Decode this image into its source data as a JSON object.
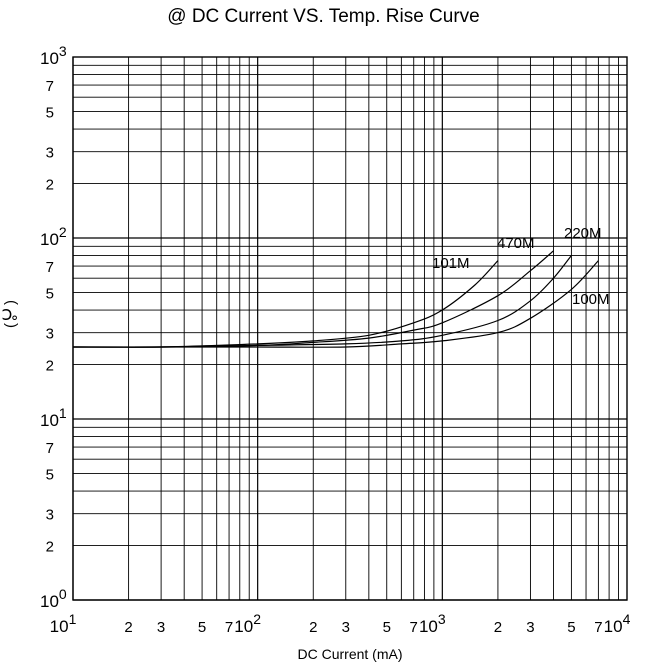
{
  "chart_data": {
    "type": "line",
    "title": "@ DC Current VS. Temp. Rise Curve",
    "xlabel": "DC Current (mA)",
    "ylabel": "(℃)",
    "x_scale": "log",
    "y_scale": "log",
    "xlim": [
      10,
      10000
    ],
    "ylim": [
      1,
      1000
    ],
    "grid": true,
    "x_major_labels": [
      {
        "value": 10,
        "base": "10",
        "exp": "1"
      },
      {
        "value": 100,
        "base": "10",
        "exp": "2"
      },
      {
        "value": 1000,
        "base": "10",
        "exp": "3"
      },
      {
        "value": 10000,
        "base": "10",
        "exp": "4"
      }
    ],
    "x_minor_labels": [
      {
        "value": 20,
        "label": "2"
      },
      {
        "value": 30,
        "label": "3"
      },
      {
        "value": 50,
        "label": "5"
      },
      {
        "value": 70,
        "label": "7"
      },
      {
        "value": 200,
        "label": "2"
      },
      {
        "value": 300,
        "label": "3"
      },
      {
        "value": 500,
        "label": "5"
      },
      {
        "value": 700,
        "label": "7"
      },
      {
        "value": 2000,
        "label": "2"
      },
      {
        "value": 3000,
        "label": "3"
      },
      {
        "value": 5000,
        "label": "5"
      },
      {
        "value": 7000,
        "label": "7"
      }
    ],
    "y_major_labels": [
      {
        "value": 1,
        "base": "10",
        "exp": "0"
      },
      {
        "value": 10,
        "base": "10",
        "exp": "1"
      },
      {
        "value": 100,
        "base": "10",
        "exp": "2"
      },
      {
        "value": 1000,
        "base": "10",
        "exp": "3"
      }
    ],
    "y_minor_labels": [
      {
        "value": 2,
        "label": "2"
      },
      {
        "value": 3,
        "label": "3"
      },
      {
        "value": 5,
        "label": "5"
      },
      {
        "value": 7,
        "label": "7"
      },
      {
        "value": 20,
        "label": "2"
      },
      {
        "value": 30,
        "label": "3"
      },
      {
        "value": 50,
        "label": "5"
      },
      {
        "value": 70,
        "label": "7"
      },
      {
        "value": 200,
        "label": "2"
      },
      {
        "value": 300,
        "label": "3"
      },
      {
        "value": 500,
        "label": "5"
      },
      {
        "value": 700,
        "label": "7"
      }
    ],
    "series": [
      {
        "name": "101M",
        "x": [
          10,
          30,
          100,
          200,
          400,
          700,
          1000,
          1500,
          2000
        ],
        "y": [
          25,
          25,
          26,
          27,
          29,
          34,
          40,
          55,
          75
        ]
      },
      {
        "name": "470M",
        "x": [
          10,
          30,
          100,
          200,
          400,
          700,
          1000,
          2000,
          3000,
          4000
        ],
        "y": [
          25,
          25,
          25.5,
          26.5,
          28,
          31,
          34,
          48,
          66,
          85
        ]
      },
      {
        "name": "220M",
        "x": [
          10,
          30,
          100,
          300,
          600,
          1000,
          2000,
          3000,
          4000,
          5000
        ],
        "y": [
          25,
          25,
          25.5,
          26,
          27,
          29,
          35,
          45,
          60,
          80
        ]
      },
      {
        "name": "100M",
        "x": [
          10,
          30,
          100,
          300,
          600,
          1000,
          2000,
          3000,
          5000,
          7000
        ],
        "y": [
          25,
          25,
          25,
          25,
          26,
          27,
          30,
          36,
          52,
          75
        ]
      }
    ]
  }
}
